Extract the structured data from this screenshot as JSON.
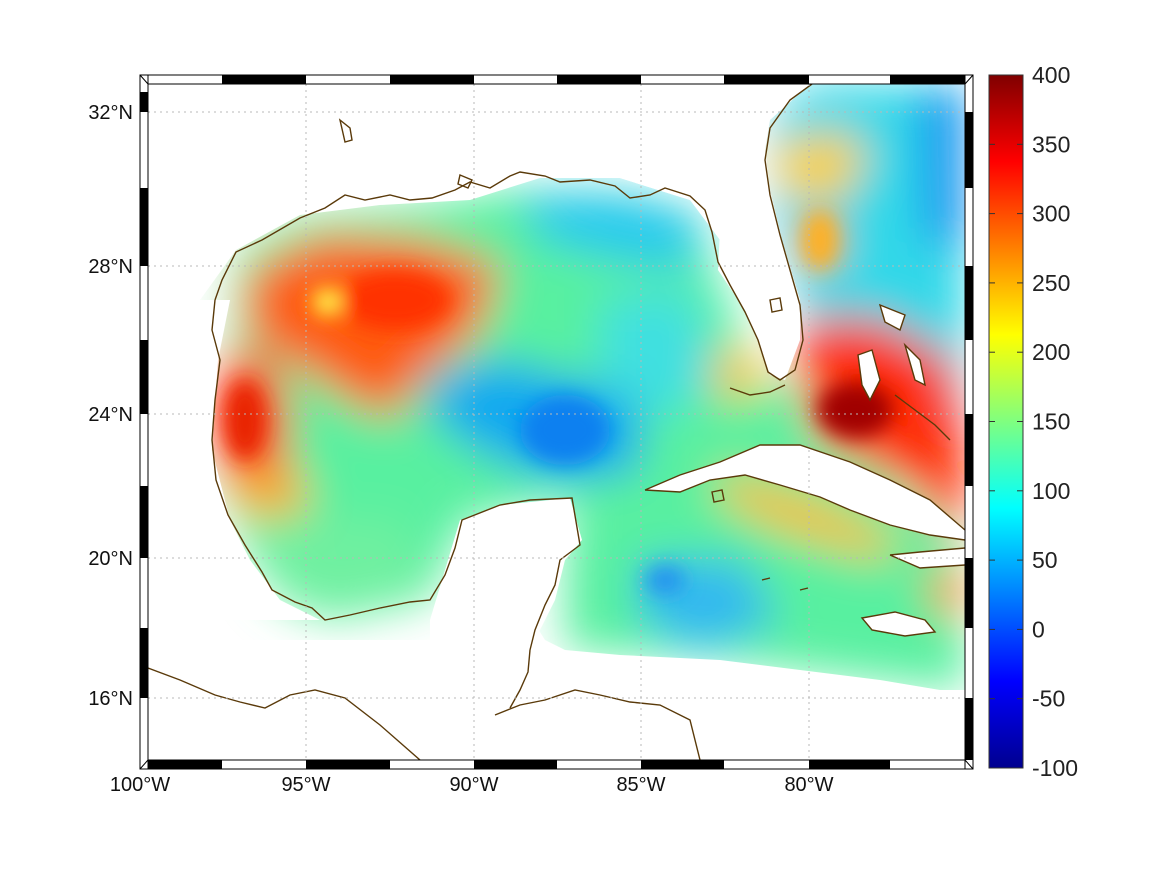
{
  "chart_data": {
    "type": "heatmap",
    "title": "",
    "xlabel": "",
    "ylabel": "",
    "projection": "mercator",
    "lon_range": [
      -100,
      -75
    ],
    "lat_range": [
      14.2,
      33
    ],
    "grid": true,
    "lon_ticks": [
      {
        "value": -100,
        "label": "100°W"
      },
      {
        "value": -95,
        "label": "95°W"
      },
      {
        "value": -90,
        "label": "90°W"
      },
      {
        "value": -85,
        "label": "85°W"
      },
      {
        "value": -80,
        "label": "80°W"
      }
    ],
    "lat_ticks": [
      {
        "value": 16,
        "label": "16°N"
      },
      {
        "value": 20,
        "label": "20°N"
      },
      {
        "value": 24,
        "label": "24°N"
      },
      {
        "value": 28,
        "label": "28°N"
      },
      {
        "value": 32,
        "label": "32°N"
      }
    ],
    "colorbar": {
      "colormap": "jet",
      "range": [
        -100,
        400
      ],
      "ticks": [
        {
          "value": 400,
          "label": "400"
        },
        {
          "value": 350,
          "label": "350"
        },
        {
          "value": 300,
          "label": "300"
        },
        {
          "value": 250,
          "label": "250"
        },
        {
          "value": 200,
          "label": "200"
        },
        {
          "value": 150,
          "label": "150"
        },
        {
          "value": 100,
          "label": "100"
        },
        {
          "value": 50,
          "label": "50"
        },
        {
          "value": 0,
          "label": "0"
        },
        {
          "value": -50,
          "label": "-50"
        },
        {
          "value": -100,
          "label": "-100"
        }
      ]
    },
    "field_regions": [
      {
        "region": "western-gulf",
        "lon": -94,
        "lat": 27.2,
        "value": 290
      },
      {
        "region": "texas-coast-eddy",
        "lon": -97.3,
        "lat": 24.0,
        "value": 300
      },
      {
        "region": "central-gulf",
        "lon": -88.5,
        "lat": 24.0,
        "value": 70
      },
      {
        "region": "northeastern-gulf",
        "lon": -87.0,
        "lat": 28.0,
        "value": 100
      },
      {
        "region": "loop-current",
        "lon": -84.5,
        "lat": 25.0,
        "value": 120
      },
      {
        "region": "bahamas-maximum",
        "lon": -78.0,
        "lat": 24.0,
        "value": 370
      },
      {
        "region": "gulf-stream-east",
        "lon": -79.0,
        "lat": 29.0,
        "value": 200
      },
      {
        "region": "atlantic-offshore",
        "lon": -76.0,
        "lat": 30.0,
        "value": 90
      },
      {
        "region": "western-caribbean",
        "lon": -84.0,
        "lat": 18.0,
        "value": 70
      },
      {
        "region": "bay-of-campeche",
        "lon": -94.0,
        "lat": 20.0,
        "value": 140
      }
    ],
    "land_color": "#ffffff",
    "coastline_color": "#5a3a0a",
    "frame_colors": [
      "#000000",
      "#ffffff"
    ]
  }
}
